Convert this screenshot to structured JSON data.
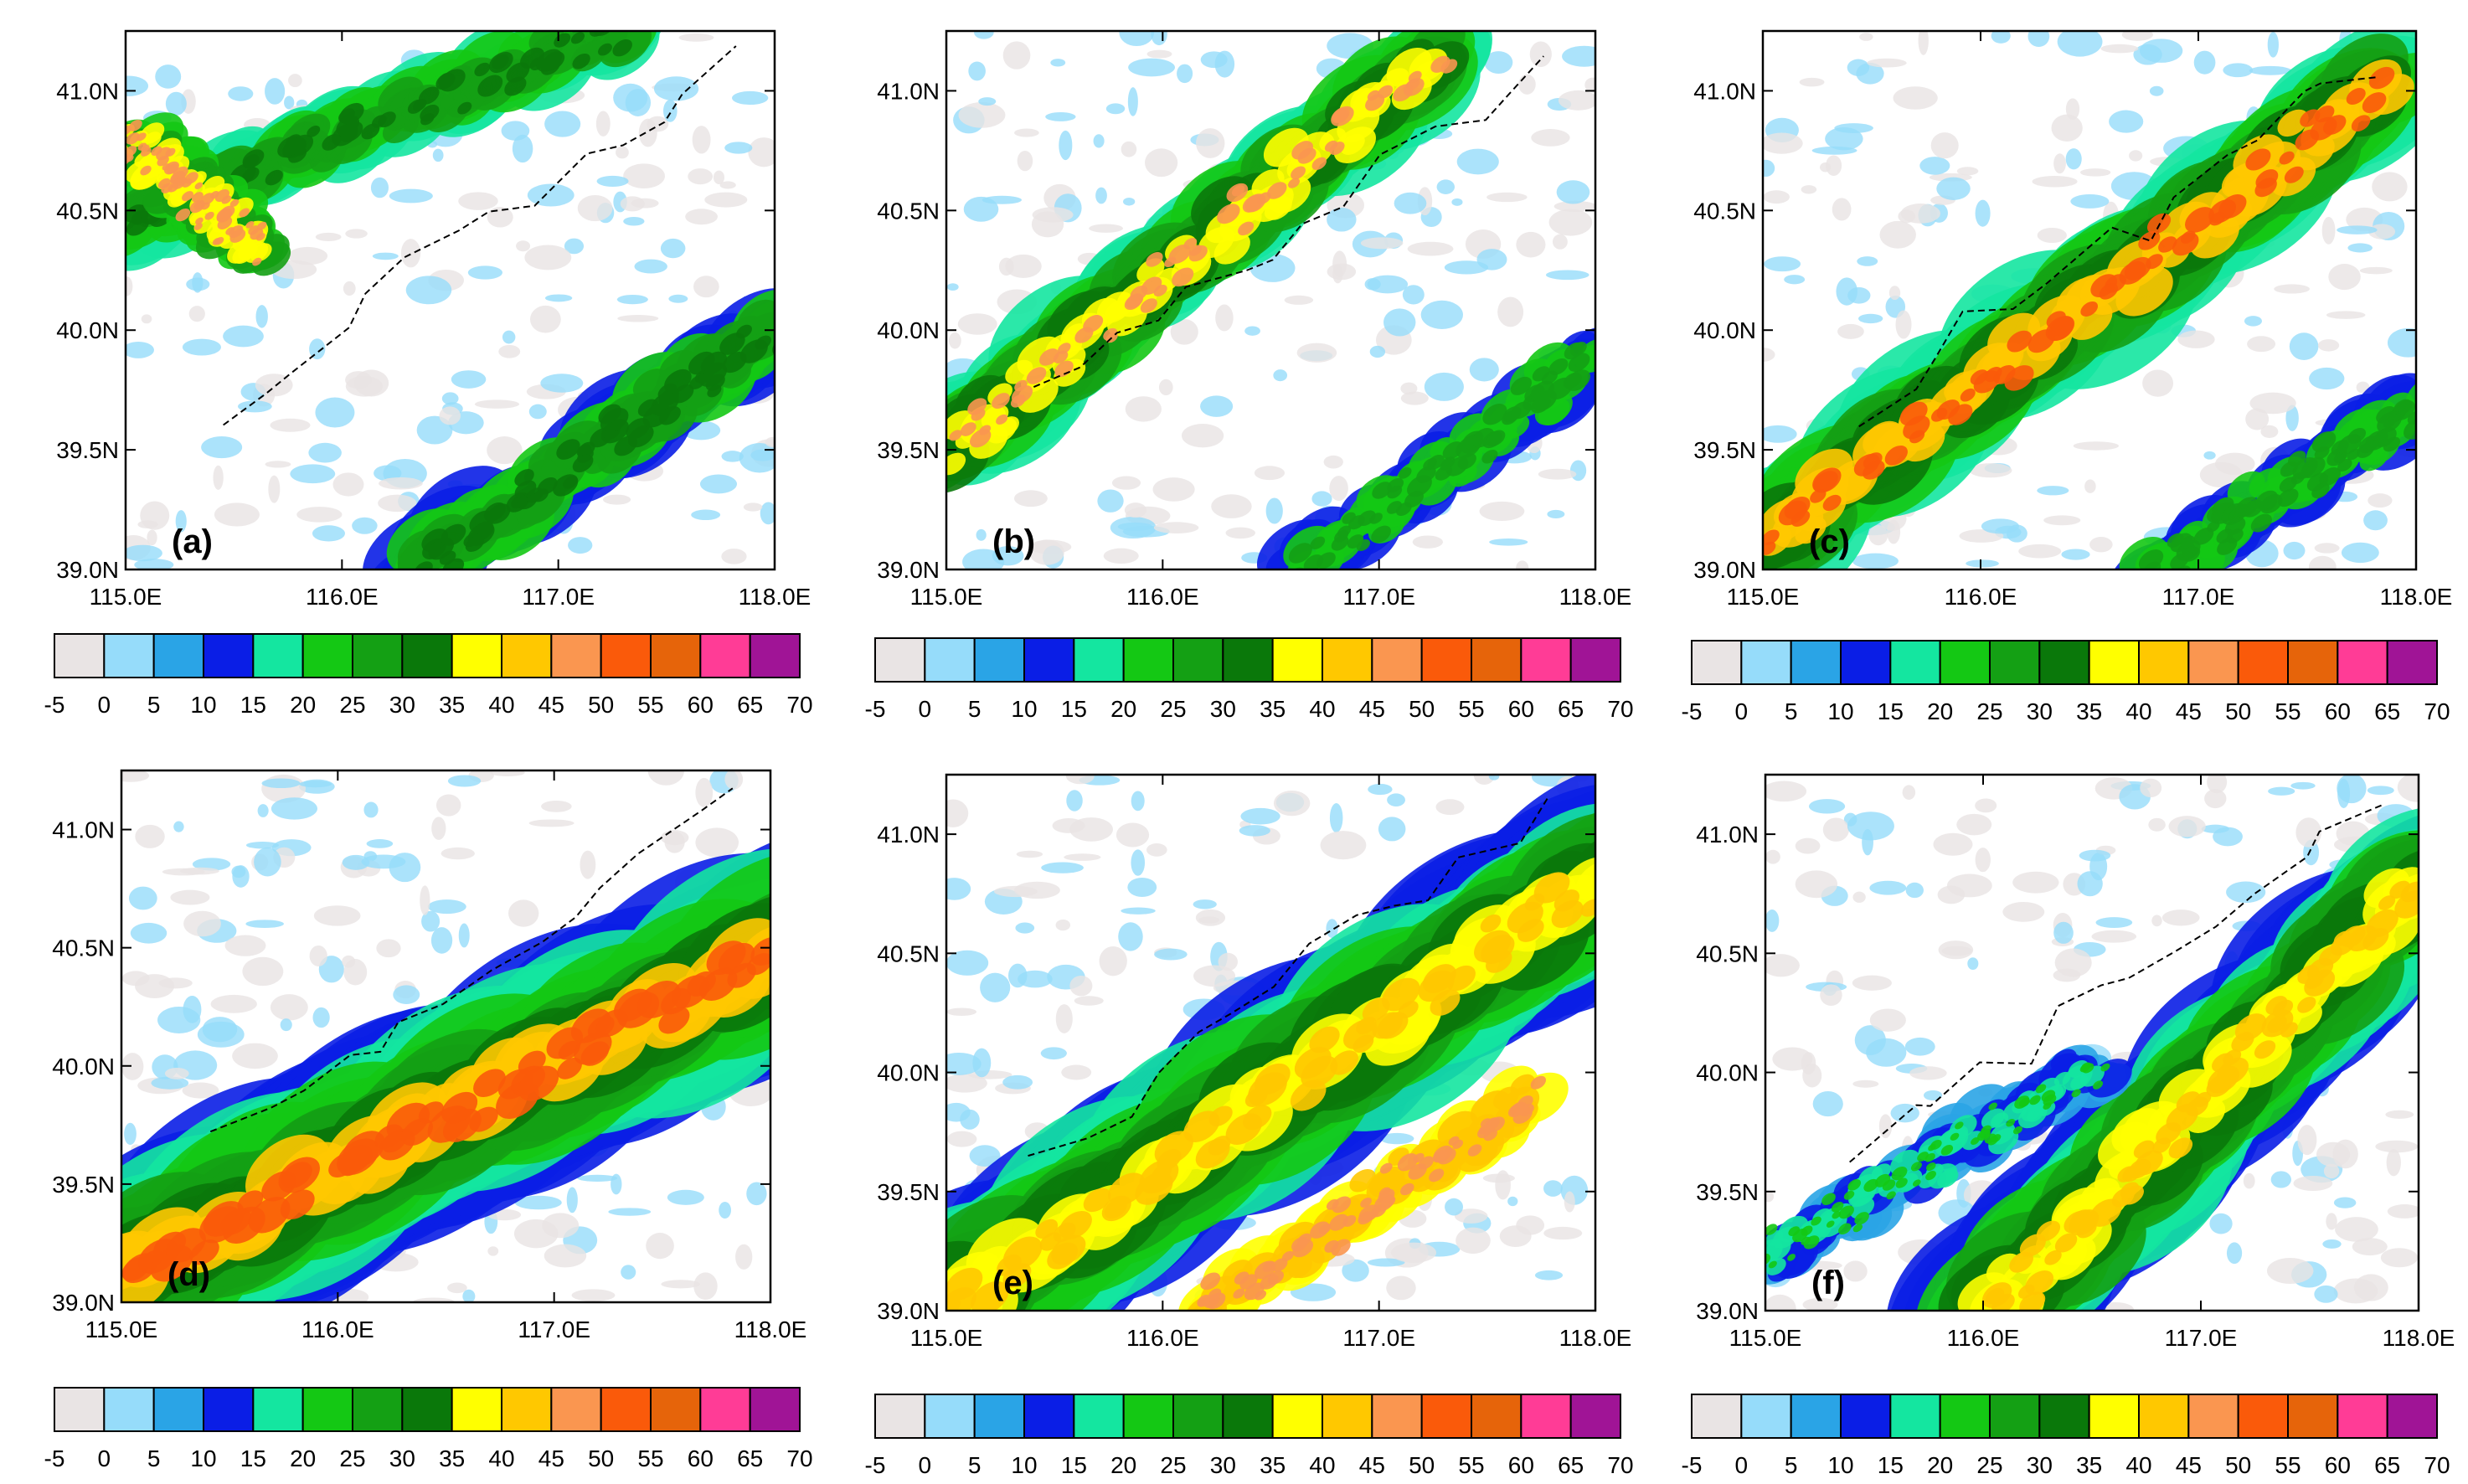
{
  "figure": {
    "x_ticks": [
      "115.0E",
      "116.0E",
      "117.0E",
      "118.0E"
    ],
    "y_ticks": [
      "39.0N",
      "39.5N",
      "40.0N",
      "40.5N",
      "41.0N"
    ],
    "colorbar": {
      "labels": [
        "-5",
        "0",
        "5",
        "10",
        "15",
        "20",
        "25",
        "30",
        "35",
        "40",
        "45",
        "50",
        "55",
        "60",
        "65",
        "70"
      ],
      "colors": [
        "#e9e4e4",
        "#96dcfa",
        "#2aa4e6",
        "#0a1ee6",
        "#14e6a0",
        "#14c814",
        "#14a014",
        "#0a780a",
        "#ffff00",
        "#ffc800",
        "#fa9650",
        "#fa5a0a",
        "#e6640a",
        "#ff3c96",
        "#a01496"
      ]
    },
    "map_bounds": {
      "lon": [
        115.0,
        118.0
      ],
      "lat": [
        39.0,
        41.25
      ]
    },
    "panels": [
      {
        "id": "a",
        "label": "(a)",
        "background": "#ffffff"
      },
      {
        "id": "b",
        "label": "(b)",
        "background": "#ffffff"
      },
      {
        "id": "c",
        "label": "(c)",
        "background": "#ffffff"
      },
      {
        "id": "d",
        "label": "(d)",
        "background": "#ffffff"
      },
      {
        "id": "e",
        "label": "(e)",
        "background": "#ffffff"
      },
      {
        "id": "f",
        "label": "(f)",
        "background": "#ffffff"
      }
    ]
  }
}
